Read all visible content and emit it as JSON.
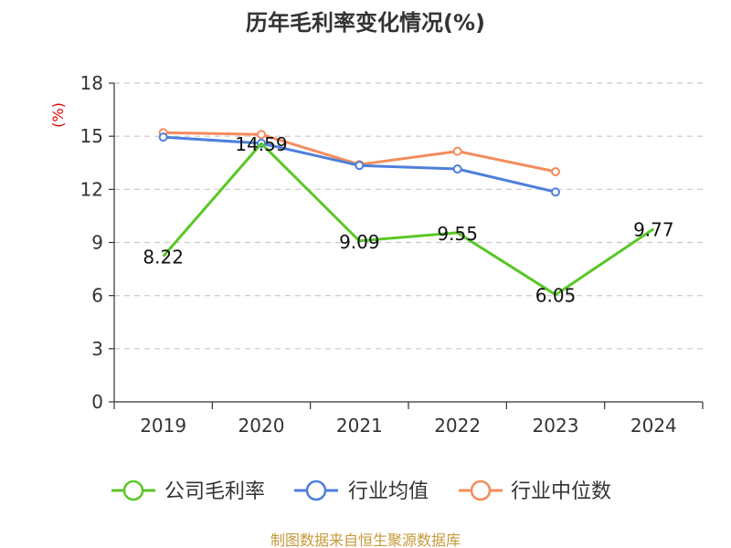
{
  "chart_data": {
    "type": "line",
    "title": "历年毛利率变化情况(%)",
    "ylabel": "(%)",
    "ylim": [
      0,
      18
    ],
    "yticks": [
      0,
      3,
      6,
      9,
      12,
      15,
      18
    ],
    "grid": true,
    "legend_position": "bottom",
    "categories": [
      "2019",
      "2020",
      "2021",
      "2022",
      "2023",
      "2024"
    ],
    "series": [
      {
        "name": "公司毛利率",
        "color": "#5ac727",
        "values": [
          8.22,
          14.59,
          9.09,
          9.55,
          6.05,
          9.77
        ],
        "labels": [
          "8.22",
          "14.59",
          "9.09",
          "9.55",
          "6.05",
          "9.77"
        ]
      },
      {
        "name": "行业均值",
        "color": "#4e7fdb",
        "values": [
          14.95,
          14.6,
          13.35,
          13.15,
          11.85,
          null
        ]
      },
      {
        "name": "行业中位数",
        "color": "#f48c5c",
        "values": [
          15.2,
          15.1,
          13.4,
          14.15,
          13.0,
          null
        ]
      }
    ],
    "source": "制图数据来自恒生聚源数据库"
  }
}
